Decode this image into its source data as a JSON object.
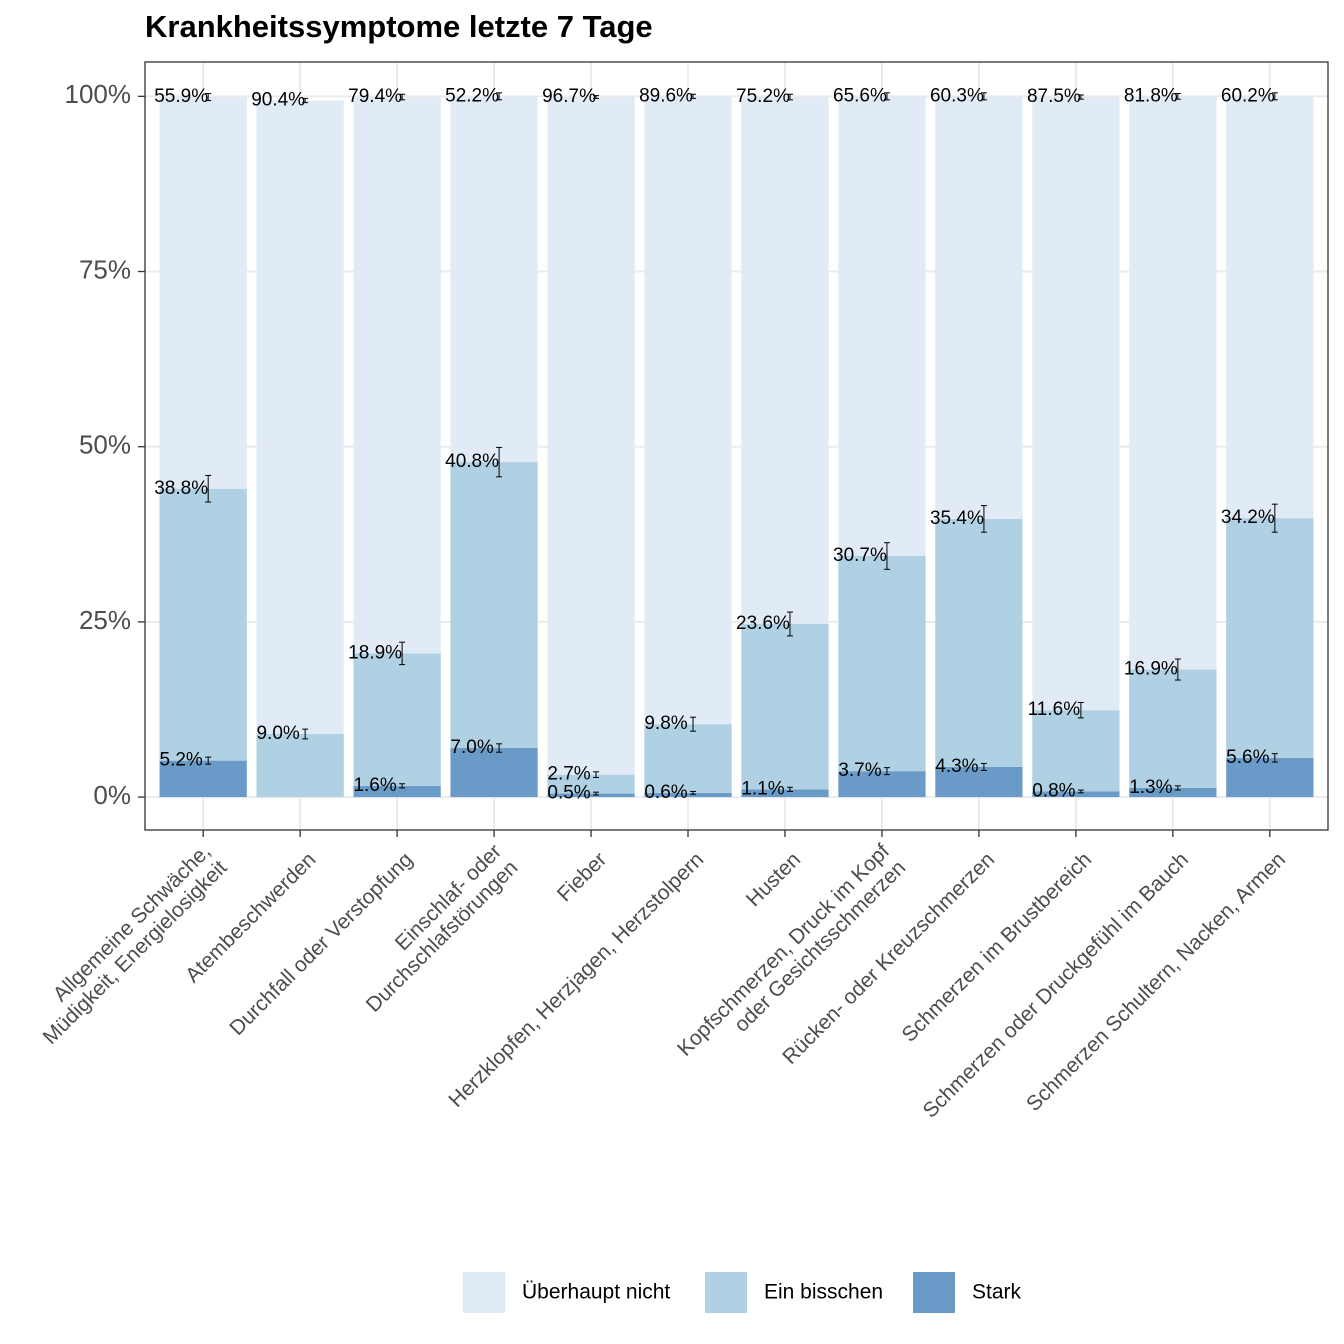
{
  "chart_data": {
    "type": "stacked-bar",
    "title": "Krankheitssymptome letzte 7 Tage",
    "categories": [
      "Allgemeine Schwäche,\nMüdigkeit, Energielosigkeit",
      "Atembeschwerden",
      "Durchfall oder Verstopfung",
      "Einschlaf- oder\nDurchschlafstörungen",
      "Fieber",
      "Herzklopfen, Herzjagen, Herzstolpern",
      "Husten",
      "Kopfschmerzen, Druck im Kopf\noder Gesichtsschmerzen",
      "Rücken- oder Kreuzschmerzen",
      "Schmerzen im Brustbereich",
      "Schmerzen oder Druckgefühl im Bauch",
      "Schmerzen Schultern, Nacken, Armen"
    ],
    "series": [
      {
        "name": "Überhaupt nicht",
        "color": "#e1ebf6",
        "values": [
          55.9,
          90.4,
          79.4,
          52.2,
          96.7,
          89.6,
          75.2,
          65.6,
          60.3,
          87.5,
          81.8,
          60.2
        ],
        "value_labels": [
          "55.9%",
          "90.4%",
          "79.4%",
          "52.2%",
          "96.7%",
          "89.6%",
          "75.2%",
          "65.6%",
          "60.3%",
          "87.5%",
          "81.8%",
          "60.2%"
        ],
        "errors": [
          0.5,
          0.3,
          0.4,
          0.5,
          0.2,
          0.3,
          0.4,
          0.5,
          0.5,
          0.3,
          0.4,
          0.5
        ]
      },
      {
        "name": "Ein bisschen",
        "color": "#afd1e3",
        "values": [
          38.8,
          9.0,
          18.9,
          40.8,
          2.7,
          9.8,
          23.6,
          30.7,
          35.4,
          11.6,
          16.9,
          34.2
        ],
        "value_labels": [
          "38.8%",
          "9.0%",
          "18.9%",
          "40.8%",
          "2.7%",
          "9.8%",
          "23.6%",
          "30.7%",
          "35.4%",
          "11.6%",
          "16.9%",
          "34.2%"
        ],
        "errors": [
          1.9,
          0.7,
          1.6,
          2.1,
          0.4,
          1.0,
          1.7,
          1.9,
          1.9,
          1.1,
          1.5,
          2.0
        ]
      },
      {
        "name": "Stark",
        "color": "#6a9bc8",
        "values": [
          5.2,
          null,
          1.6,
          7.0,
          0.5,
          0.6,
          1.1,
          3.7,
          4.3,
          0.8,
          1.3,
          5.6
        ],
        "value_labels": [
          "5.2%",
          null,
          "1.6%",
          "7.0%",
          "0.5%",
          "0.6%",
          "1.1%",
          "3.7%",
          "4.3%",
          "0.8%",
          "1.3%",
          "5.6%"
        ],
        "errors": [
          0.5,
          null,
          0.3,
          0.6,
          0.2,
          0.2,
          0.3,
          0.5,
          0.5,
          0.2,
          0.3,
          0.6
        ]
      }
    ],
    "ylim": [
      -4.7,
      104.9
    ],
    "yticks": [
      {
        "value": 0,
        "label": "0%"
      },
      {
        "value": 25,
        "label": "25%"
      },
      {
        "value": 50,
        "label": "50%"
      },
      {
        "value": 75,
        "label": "75%"
      },
      {
        "value": 100,
        "label": "100%"
      }
    ],
    "grid": true,
    "legend": "bottom"
  }
}
